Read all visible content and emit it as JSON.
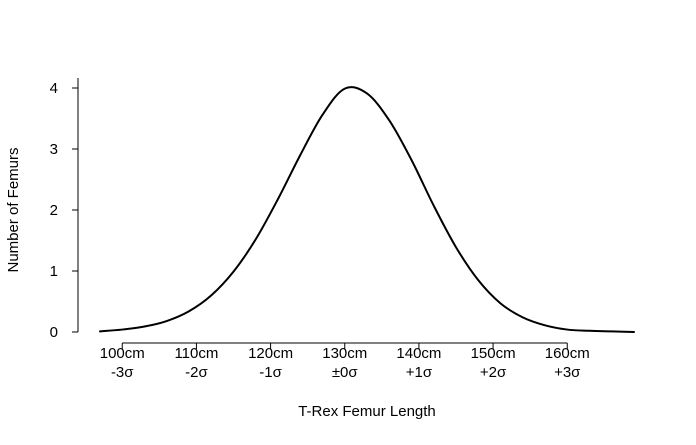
{
  "chart_data": {
    "type": "line",
    "title": "",
    "xlabel": "T-Rex Femur Length",
    "ylabel": "Number of Femurs",
    "xlim": [
      97,
      169
    ],
    "ylim": [
      0,
      4
    ],
    "grid": false,
    "legend": "none",
    "y_ticks": [
      {
        "value": 0,
        "label": "0"
      },
      {
        "value": 1,
        "label": "1"
      },
      {
        "value": 2,
        "label": "2"
      },
      {
        "value": 3,
        "label": "3"
      },
      {
        "value": 4,
        "label": "4"
      }
    ],
    "x_ticks": [
      {
        "value": 100,
        "label": "100cm",
        "sublabel": "-3σ"
      },
      {
        "value": 110,
        "label": "110cm",
        "sublabel": "-2σ"
      },
      {
        "value": 120,
        "label": "120cm",
        "sublabel": "-1σ"
      },
      {
        "value": 130,
        "label": "130cm",
        "sublabel": "±0σ"
      },
      {
        "value": 140,
        "label": "140cm",
        "sublabel": "+1σ"
      },
      {
        "value": 150,
        "label": "150cm",
        "sublabel": "+2σ"
      },
      {
        "value": 160,
        "label": "160cm",
        "sublabel": "+3σ"
      }
    ],
    "series": [
      {
        "color": "#000000",
        "x": [
          97,
          100,
          103,
          106,
          109,
          112,
          115,
          118,
          121,
          124,
          127,
          130,
          133,
          136,
          139,
          142,
          145,
          148,
          151,
          154,
          157,
          160,
          163,
          166,
          169
        ],
        "values": [
          0.01,
          0.04,
          0.09,
          0.18,
          0.34,
          0.6,
          0.99,
          1.52,
          2.18,
          2.9,
          3.56,
          3.99,
          3.91,
          3.47,
          2.82,
          2.07,
          1.39,
          0.85,
          0.47,
          0.24,
          0.11,
          0.04,
          0.02,
          0.01,
          0.0
        ]
      }
    ]
  }
}
